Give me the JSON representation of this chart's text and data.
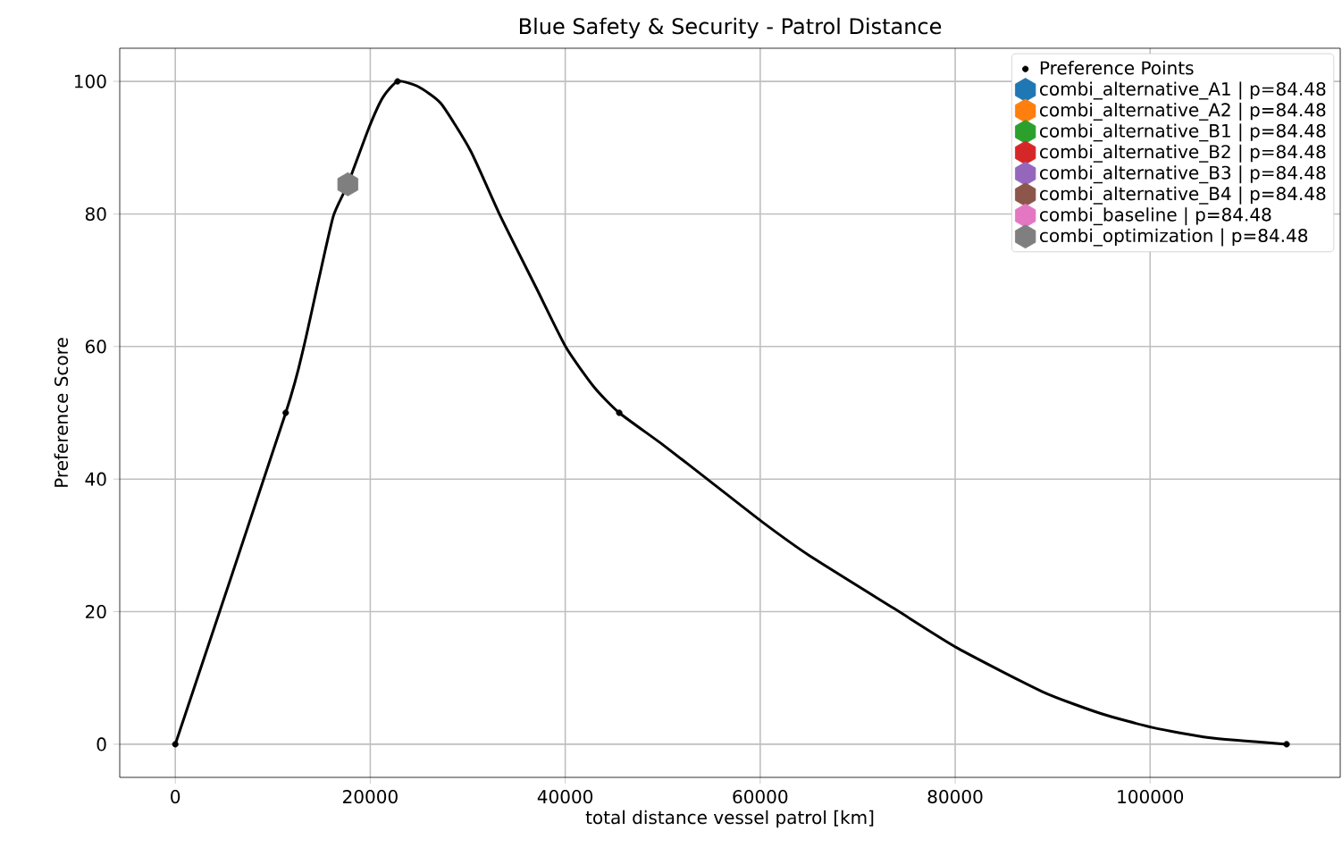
{
  "chart_data": {
    "type": "line",
    "title": "Blue Safety & Security - Patrol Distance",
    "xlabel": "total distance vessel patrol [km]",
    "ylabel": "Preference Score",
    "xlim": [
      -5700,
      119500
    ],
    "ylim": [
      -5,
      105
    ],
    "xticks": [
      0,
      20000,
      40000,
      60000,
      80000,
      100000
    ],
    "yticks": [
      0,
      20,
      40,
      60,
      80,
      100
    ],
    "grid": true,
    "legend": "top right",
    "series": [
      {
        "color": "#000000",
        "marker": "none",
        "line_style": "solid",
        "x": [
          0,
          11330,
          13170,
          14700,
          16220,
          17700,
          19890,
          21300,
          22800,
          24800,
          27230,
          30300,
          33340,
          37010,
          40070,
          43000,
          45540,
          50000,
          55000,
          60240,
          65000,
          73710,
          80250,
          88990,
          95000,
          100320,
          106000,
          114000
        ],
        "values": [
          0,
          50,
          59.9,
          70,
          79.7,
          84.5,
          93.1,
          97.6,
          100,
          99.3,
          96.7,
          89.5,
          79.7,
          68.9,
          59.9,
          53.8,
          50,
          45.2,
          39.5,
          33.5,
          28.5,
          20.5,
          14.5,
          7.9,
          4.6,
          2.5,
          1,
          0
        ]
      },
      {
        "type": "scatter",
        "name": "Preference Points",
        "color": "#000000",
        "marker": "circle",
        "x": [
          0,
          11330,
          22800,
          45540,
          114000
        ],
        "values": [
          0,
          50,
          100,
          50,
          0
        ]
      },
      {
        "type": "scatter",
        "name": "combi_alternative_A1 | p=84.48",
        "color": "#1f77b4",
        "values": [
          null
        ]
      },
      {
        "type": "scatter",
        "name": "combi_alternative_A2 | p=84.48",
        "color": "#ff7f0e",
        "values": [
          null
        ]
      },
      {
        "type": "scatter",
        "name": "combi_alternative_B1 | p=84.48",
        "color": "#2ca02c",
        "values": [
          null
        ]
      },
      {
        "type": "scatter",
        "name": "combi_alternative_B2 | p=84.48",
        "color": "#d62728",
        "values": [
          null
        ]
      },
      {
        "type": "scatter",
        "name": "combi_alternative_B3 | p=84.48",
        "color": "#9467bd",
        "values": [
          null
        ]
      },
      {
        "type": "scatter",
        "name": "combi_alternative_B4 | p=84.48",
        "color": "#8c564b",
        "values": [
          null
        ]
      },
      {
        "type": "scatter",
        "name": "combi_baseline | p=84.48",
        "color": "#e377c2",
        "values": [
          null
        ]
      },
      {
        "type": "scatter",
        "name": "combi_optimization | p=84.48",
        "color": "#7f7f7f",
        "x": [
          17700
        ],
        "values": [
          84.48
        ]
      }
    ]
  }
}
